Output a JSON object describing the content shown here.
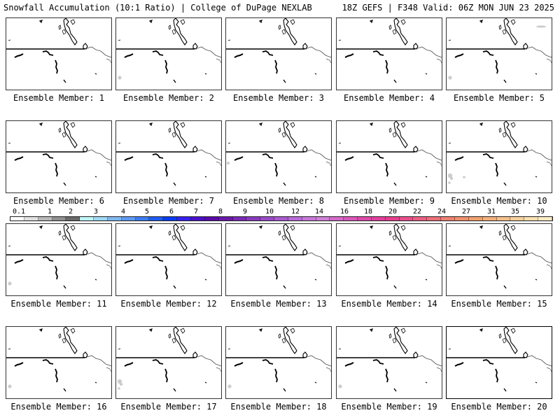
{
  "header": {
    "title": "Snowfall Accumulation (10:1 Ratio) | College of DuPage NEXLAB",
    "run_info": "18Z GEFS | F348 Valid: 06Z MON JUN 23 2025"
  },
  "colors": {
    "coast": "#000000",
    "border": "#000000",
    "river": "#555555",
    "trace_snow": "#c8c8c8",
    "scale": [
      "#ffffff",
      "#e0e0e0",
      "#b8b8b8",
      "#909090",
      "#6a6a6a",
      "#bff4f4",
      "#9fd8f4",
      "#7fb8f0",
      "#5f9af0",
      "#3d7cf0",
      "#1f5cf0",
      "#0a3cf0",
      "#3a1ff0",
      "#4a10c8",
      "#5a0aa8",
      "#6a1aa8",
      "#7a2ab4",
      "#8a3abf",
      "#9a4ac8",
      "#aa5ad0",
      "#ba6ad8",
      "#c878d8",
      "#d080d8",
      "#d46ac8",
      "#d858b8",
      "#dc4aa8",
      "#e0409c",
      "#e4408c",
      "#e8508a",
      "#ea6080",
      "#ec7078",
      "#ee8070",
      "#f0906c",
      "#f2a06c",
      "#f4b07c",
      "#f6c08c",
      "#f8d09c",
      "#fae0b0",
      "#fcecc4"
    ]
  },
  "scale_labels": [
    "0.1",
    "1",
    "2",
    "3",
    "4",
    "5",
    "6",
    "7",
    "8",
    "9",
    "10",
    "12",
    "14",
    "16",
    "18",
    "20",
    "22",
    "24",
    "27",
    "31",
    "35",
    "39"
  ],
  "members": [
    {
      "label": "Ensemble Member: 1",
      "snow": []
    },
    {
      "label": "Ensemble Member: 2",
      "snow": [
        "sw"
      ]
    },
    {
      "label": "Ensemble Member: 3",
      "snow": []
    },
    {
      "label": "Ensemble Member: 4",
      "snow": []
    },
    {
      "label": "Ensemble Member: 5",
      "snow": [
        "ne",
        "sw"
      ]
    },
    {
      "label": "Ensemble Member: 6",
      "snow": []
    },
    {
      "label": "Ensemble Member: 7",
      "snow": []
    },
    {
      "label": "Ensemble Member: 8",
      "snow": [
        "w"
      ]
    },
    {
      "label": "Ensemble Member: 9",
      "snow": []
    },
    {
      "label": "Ensemble Member: 10",
      "snow": [
        "sw_big",
        "s"
      ]
    },
    {
      "label": "Ensemble Member: 11",
      "snow": [
        "sw"
      ]
    },
    {
      "label": "Ensemble Member: 12",
      "snow": []
    },
    {
      "label": "Ensemble Member: 13",
      "snow": []
    },
    {
      "label": "Ensemble Member: 14",
      "snow": []
    },
    {
      "label": "Ensemble Member: 15",
      "snow": []
    },
    {
      "label": "Ensemble Member: 16",
      "snow": [
        "sw"
      ]
    },
    {
      "label": "Ensemble Member: 17",
      "snow": [
        "sw_big"
      ]
    },
    {
      "label": "Ensemble Member: 18",
      "snow": [
        "sw"
      ]
    },
    {
      "label": "Ensemble Member: 19",
      "snow": [
        "sw"
      ]
    },
    {
      "label": "Ensemble Member: 20",
      "snow": []
    }
  ]
}
